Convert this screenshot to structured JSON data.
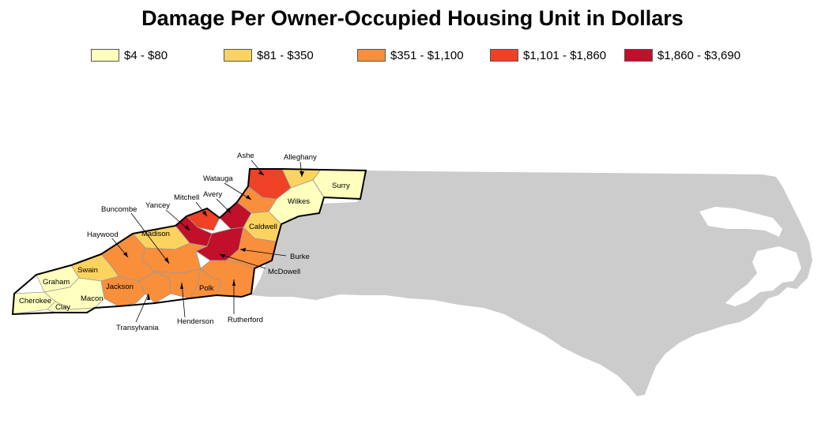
{
  "title": "Damage Per Owner-Occupied Housing Unit in Dollars",
  "legend": [
    {
      "label": "$4 - $80",
      "color": "#ffffbe"
    },
    {
      "label": "$81 - $350",
      "color": "#fdd35f"
    },
    {
      "label": "$351 - $1,100",
      "color": "#f98e3b"
    },
    {
      "label": "$1,101 - $1,860",
      "color": "#ee4125"
    },
    {
      "label": "$1,860 - $3,690",
      "color": "#c0102a"
    }
  ],
  "colors": {
    "state_fill": "#cccccc",
    "county_border": "#9a9a9a",
    "region_outline": "#000000"
  },
  "counties": [
    {
      "name": "Ashe",
      "class": 4
    },
    {
      "name": "Alleghany",
      "class": 2
    },
    {
      "name": "Surry",
      "class": 1
    },
    {
      "name": "Watauga",
      "class": 3
    },
    {
      "name": "Wilkes",
      "class": 1
    },
    {
      "name": "Avery",
      "class": 5
    },
    {
      "name": "Mitchell",
      "class": 4
    },
    {
      "name": "Yancey",
      "class": 5
    },
    {
      "name": "Caldwell",
      "class": 2
    },
    {
      "name": "Madison",
      "class": 2
    },
    {
      "name": "Buncombe",
      "class": 3
    },
    {
      "name": "Burke",
      "class": 3
    },
    {
      "name": "McDowell",
      "class": 5
    },
    {
      "name": "Haywood",
      "class": 3
    },
    {
      "name": "Swain",
      "class": 2
    },
    {
      "name": "Graham",
      "class": 1
    },
    {
      "name": "Jackson",
      "class": 3
    },
    {
      "name": "Cherokee",
      "class": 1
    },
    {
      "name": "Macon",
      "class": 1
    },
    {
      "name": "Clay",
      "class": 1
    },
    {
      "name": "Transylvania",
      "class": 3
    },
    {
      "name": "Henderson",
      "class": 3
    },
    {
      "name": "Polk",
      "class": 3
    },
    {
      "name": "Rutherford",
      "class": 3
    }
  ]
}
